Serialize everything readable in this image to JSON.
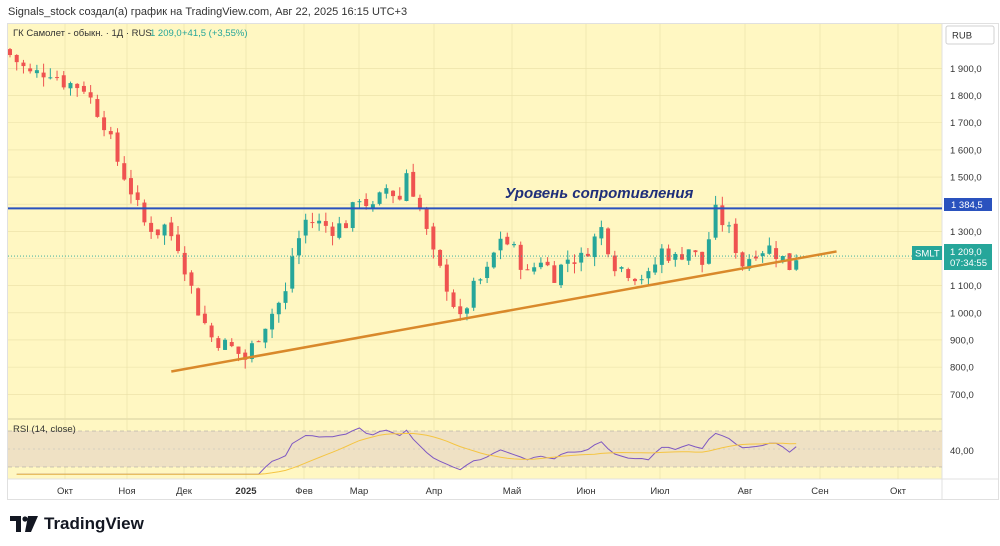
{
  "header": {
    "text": "Signals_stock создал(а) график на TradingView.com, Авг 22, 2025 16:15 UTC+3"
  },
  "legend": {
    "symbol": "ГК Самолет - обыкн. · 1Д · RUS",
    "price": "1 209,0",
    "change": "+41,5 (+3,55%)"
  },
  "currency": "RUB",
  "price_tag": {
    "ticker": "SMLT",
    "price": "1 209,0",
    "countdown": "07:34:55"
  },
  "resistance": {
    "label": "Уровень сопротивления",
    "value_label": "1 384,5"
  },
  "rsi": {
    "label": "RSI (14, close)",
    "tick": "40,00"
  },
  "logo": {
    "text": "TradingView"
  },
  "colors": {
    "background": "#fff7c2",
    "up": "#26a69a",
    "down": "#ef5350",
    "resistance": "#2a52be",
    "support": "#d9892b",
    "rsi_line": "#7e57c2",
    "rsi_ma": "#f5c542"
  },
  "chart_data": {
    "type": "candlestick",
    "x_ticks": [
      "Окт",
      "Ноя",
      "Дек",
      "2025",
      "Фев",
      "Мар",
      "Апр",
      "Май",
      "Июн",
      "Июл",
      "Авг",
      "Сен",
      "Окт"
    ],
    "y_ticks": [
      "1 900,0",
      "1 800,0",
      "1 700,0",
      "1 600,0",
      "1 500,0",
      "1 400,0",
      "1 300,0",
      "1 200,0",
      "1 100,0",
      "1 000,0",
      "900,0",
      "800,0",
      "700,0"
    ],
    "y_tick_values": [
      1900,
      1800,
      1700,
      1600,
      1500,
      1400,
      1300,
      1200,
      1100,
      1000,
      900,
      800,
      700
    ],
    "ylim": [
      620,
      1990
    ],
    "close_path": [
      [
        0,
        1950
      ],
      [
        3,
        1880
      ],
      [
        6,
        1890
      ],
      [
        8,
        1850
      ],
      [
        11,
        1830
      ],
      [
        14,
        1700
      ],
      [
        16,
        1560
      ],
      [
        18,
        1450
      ],
      [
        20,
        1330
      ],
      [
        22,
        1300
      ],
      [
        23,
        1320
      ],
      [
        25,
        1250
      ],
      [
        28,
        1010
      ],
      [
        30,
        910
      ],
      [
        33,
        870
      ],
      [
        35,
        830
      ],
      [
        37,
        920
      ],
      [
        39,
        1000
      ],
      [
        41,
        1070
      ],
      [
        42,
        1210
      ],
      [
        44,
        1340
      ],
      [
        46,
        1330
      ],
      [
        48,
        1310
      ],
      [
        50,
        1330
      ],
      [
        52,
        1430
      ],
      [
        54,
        1380
      ],
      [
        56,
        1460
      ],
      [
        58,
        1420
      ],
      [
        59,
        1520
      ],
      [
        61,
        1380
      ],
      [
        63,
        1210
      ],
      [
        65,
        1100
      ],
      [
        67,
        970
      ],
      [
        69,
        1090
      ],
      [
        71,
        1150
      ],
      [
        73,
        1280
      ],
      [
        75,
        1230
      ],
      [
        77,
        1140
      ],
      [
        79,
        1200
      ],
      [
        81,
        1140
      ],
      [
        83,
        1200
      ],
      [
        85,
        1200
      ],
      [
        88,
        1310
      ],
      [
        90,
        1180
      ],
      [
        93,
        1140
      ],
      [
        95,
        1130
      ],
      [
        97,
        1230
      ],
      [
        99,
        1200
      ],
      [
        101,
        1240
      ],
      [
        103,
        1180
      ],
      [
        105,
        1370
      ],
      [
        107,
        1300
      ],
      [
        109,
        1180
      ],
      [
        111,
        1230
      ],
      [
        113,
        1240
      ],
      [
        115,
        1200
      ],
      [
        116,
        1170
      ],
      [
        117,
        1210
      ]
    ],
    "resistance_value": 1384.5,
    "support_line": [
      [
        24,
        784
      ],
      [
        123,
        1226
      ]
    ],
    "last_price": 1209.0,
    "rsi_tick_value": 40,
    "rsi_ylim": [
      20,
      80
    ]
  }
}
